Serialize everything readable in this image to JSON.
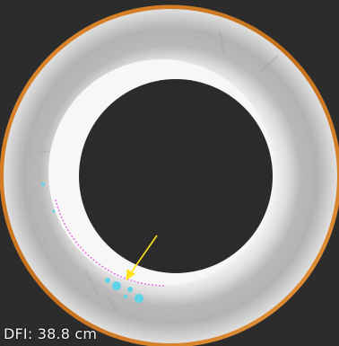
{
  "overlay": {
    "dfi_text": "DFI: 38.8 cm"
  },
  "colors": {
    "background": "#2c2c2c",
    "rim_orange": "#d9822b",
    "phantom_white": "#f6f6f6",
    "annotation_arrow": "#ffe21a",
    "calcification_cyan": "#5fd3e8",
    "boundary_magenta": "#e070e0"
  },
  "icons": {
    "annotation": "arrow-pointer-icon"
  }
}
